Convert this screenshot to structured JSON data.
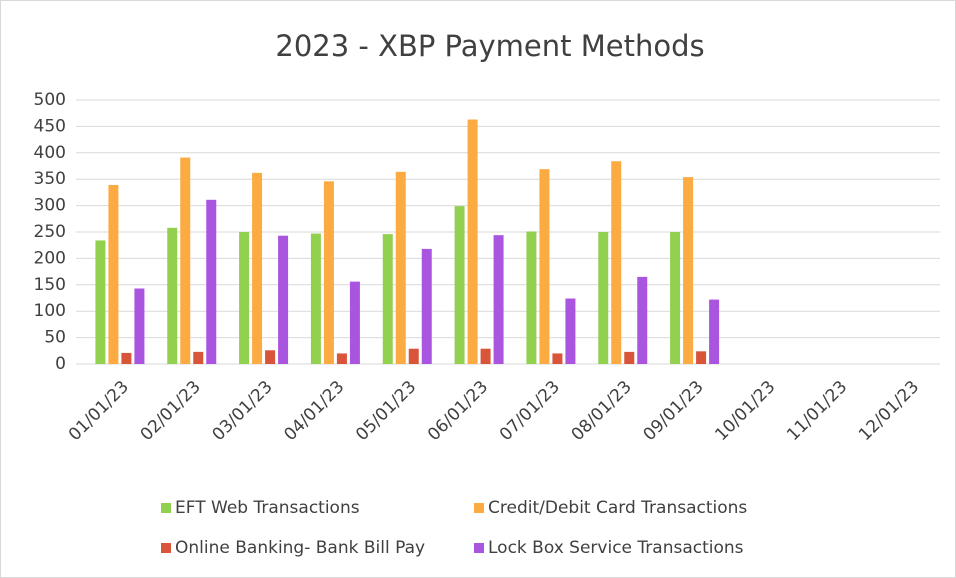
{
  "chart_data": {
    "type": "bar",
    "title": "2023 - XBP Payment Methods",
    "categories": [
      "01/01/23",
      "02/01/23",
      "03/01/23",
      "04/01/23",
      "05/01/23",
      "06/01/23",
      "07/01/23",
      "08/01/23",
      "09/01/23",
      "10/01/23",
      "11/01/23",
      "12/01/23"
    ],
    "series": [
      {
        "name": "EFT Web Transactions",
        "color": "#92d050",
        "values": [
          234,
          258,
          250,
          247,
          246,
          299,
          251,
          250,
          250,
          null,
          null,
          null
        ]
      },
      {
        "name": "Credit/Debit Card Transactions",
        "color": "#fbab42",
        "values": [
          339,
          391,
          362,
          346,
          364,
          463,
          369,
          384,
          354,
          null,
          null,
          null
        ]
      },
      {
        "name": "Online Banking- Bank Bill Pay",
        "color": "#d9553a",
        "values": [
          21,
          23,
          26,
          20,
          29,
          29,
          20,
          23,
          24,
          null,
          null,
          null
        ]
      },
      {
        "name": "Lock Box Service Transactions",
        "color": "#aa55e0",
        "values": [
          143,
          311,
          243,
          156,
          218,
          244,
          124,
          165,
          122,
          null,
          null,
          null
        ]
      }
    ],
    "ylim": [
      0,
      500
    ],
    "yticks": [
      0,
      50,
      100,
      150,
      200,
      250,
      300,
      350,
      400,
      450,
      500
    ],
    "grid": true,
    "legend": "bottom"
  }
}
